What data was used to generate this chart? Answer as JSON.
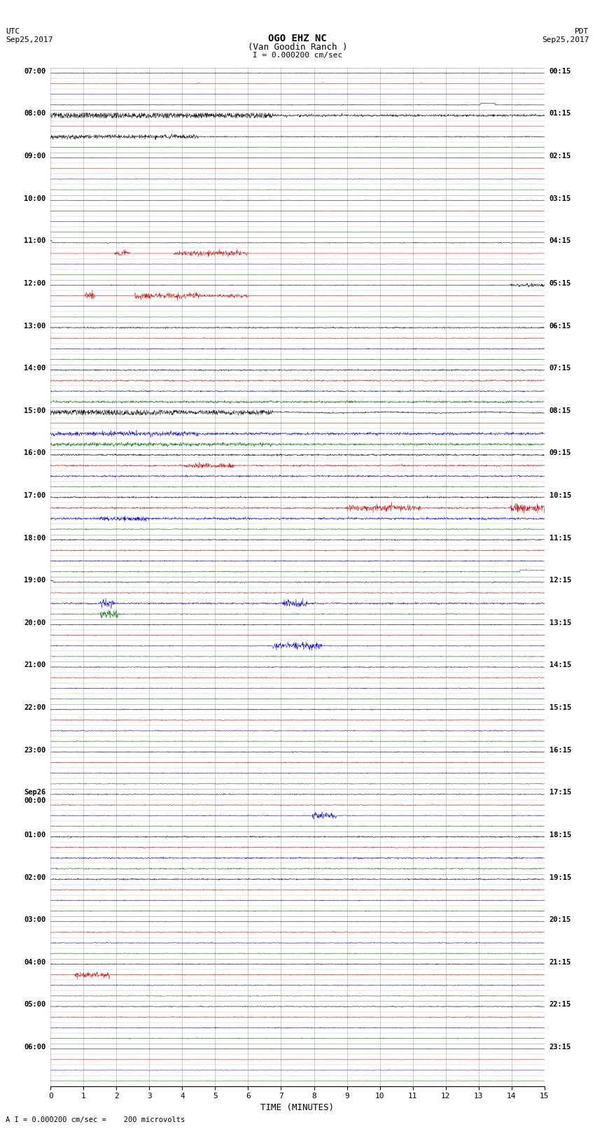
{
  "title_line1": "OGO EHZ NC",
  "title_line2": "(Van Goodin Ranch )",
  "scale_label": "I = 0.000200 cm/sec",
  "utc_label": "UTC\nSep25,2017",
  "pdt_label": "PDT\nSep25,2017",
  "xlabel": "TIME (MINUTES)",
  "footer": "A I = 0.000200 cm/sec =    200 microvolts",
  "xlim": [
    0,
    15
  ],
  "xticks": [
    0,
    1,
    2,
    3,
    4,
    5,
    6,
    7,
    8,
    9,
    10,
    11,
    12,
    13,
    14,
    15
  ],
  "bg_color": "#ffffff",
  "line_color_black": "#000000",
  "line_color_red": "#cc0000",
  "line_color_blue": "#0000cc",
  "line_color_green": "#007700",
  "grid_color": "#aaaaaa",
  "label_color": "#000000",
  "left_hour_labels": [
    [
      "07:00",
      0
    ],
    [
      "08:00",
      4
    ],
    [
      "09:00",
      8
    ],
    [
      "10:00",
      12
    ],
    [
      "11:00",
      16
    ],
    [
      "12:00",
      20
    ],
    [
      "13:00",
      24
    ],
    [
      "14:00",
      28
    ],
    [
      "15:00",
      32
    ],
    [
      "16:00",
      36
    ],
    [
      "17:00",
      40
    ],
    [
      "18:00",
      44
    ],
    [
      "19:00",
      48
    ],
    [
      "20:00",
      52
    ],
    [
      "21:00",
      56
    ],
    [
      "22:00",
      60
    ],
    [
      "23:00",
      64
    ],
    [
      "Sep26\n00:00",
      68
    ],
    [
      "01:00",
      72
    ],
    [
      "02:00",
      76
    ],
    [
      "03:00",
      80
    ],
    [
      "04:00",
      84
    ],
    [
      "05:00",
      88
    ],
    [
      "06:00",
      92
    ]
  ],
  "right_hour_labels": [
    [
      "00:15",
      0
    ],
    [
      "01:15",
      4
    ],
    [
      "02:15",
      8
    ],
    [
      "03:15",
      12
    ],
    [
      "04:15",
      16
    ],
    [
      "05:15",
      20
    ],
    [
      "06:15",
      24
    ],
    [
      "07:15",
      28
    ],
    [
      "08:15",
      32
    ],
    [
      "09:15",
      36
    ],
    [
      "10:15",
      40
    ],
    [
      "11:15",
      44
    ],
    [
      "12:15",
      48
    ],
    [
      "13:15",
      52
    ],
    [
      "14:15",
      56
    ],
    [
      "15:15",
      60
    ],
    [
      "16:15",
      64
    ],
    [
      "17:15",
      68
    ],
    [
      "18:15",
      72
    ],
    [
      "19:15",
      76
    ],
    [
      "20:15",
      80
    ],
    [
      "21:15",
      84
    ],
    [
      "22:15",
      88
    ],
    [
      "23:15",
      92
    ]
  ],
  "num_rows": 96,
  "row_colors_pattern": [
    "#000000",
    "#cc0000",
    "#0000cc",
    "#007700"
  ],
  "special_early_rows": {
    "0": "#000000",
    "1": "#cc0000",
    "2": "#0000cc",
    "3": "#000000",
    "4": "#cc0000",
    "5": "#000000",
    "6": "#007700",
    "7": "#000000"
  }
}
